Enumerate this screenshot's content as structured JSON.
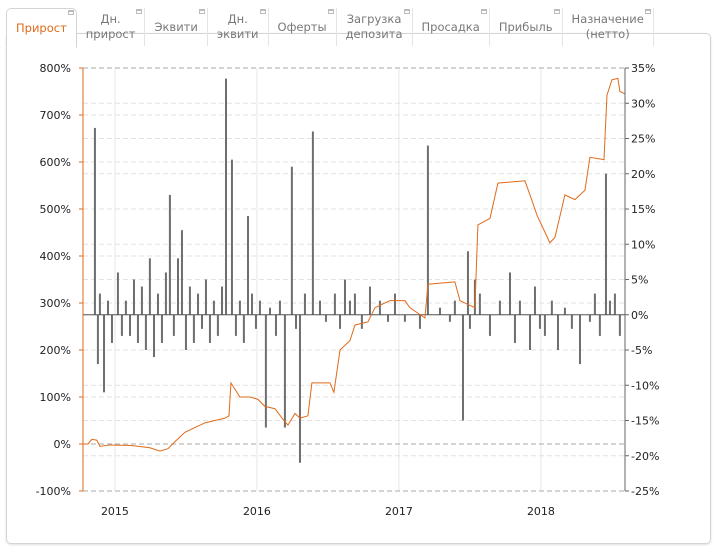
{
  "tabs": [
    {
      "label": "Прирост",
      "active": true
    },
    {
      "label": "Дн.\nприрост"
    },
    {
      "label": "Эквити"
    },
    {
      "label": "Дн.\nэквити"
    },
    {
      "label": "Оферты"
    },
    {
      "label": "Загрузка\nдепозита"
    },
    {
      "label": "Просадка"
    },
    {
      "label": "Прибыль"
    },
    {
      "label": "Назначение\n(нетто)"
    }
  ],
  "colors": {
    "line": "#e06a1a",
    "bars": "#6e6e6e",
    "axis_left": "#e06a1a",
    "axis_right": "#666666"
  },
  "chart_data": {
    "type": "line+bar",
    "x_range": [
      2014.775,
      2018.592
    ],
    "x_ticks": [
      {
        "value": 2015,
        "label": "2015"
      },
      {
        "value": 2016,
        "label": "2016"
      },
      {
        "value": 2017,
        "label": "2017"
      },
      {
        "value": 2018,
        "label": "2018"
      }
    ],
    "y_left": {
      "range": [
        -100,
        800
      ],
      "ticks": [
        "800%",
        "700%",
        "600%",
        "500%",
        "400%",
        "300%",
        "200%",
        "100%",
        "0%",
        "-100%"
      ],
      "tick_values": [
        800,
        700,
        600,
        500,
        400,
        300,
        200,
        100,
        0,
        -100
      ]
    },
    "y_right": {
      "range": [
        -25,
        35
      ],
      "ticks": [
        "35%",
        "30%",
        "25%",
        "20%",
        "15%",
        "10%",
        "5%",
        "0%",
        "-5%",
        "-10%",
        "-15%",
        "-20%",
        "-25%"
      ],
      "tick_values": [
        35,
        30,
        25,
        20,
        15,
        10,
        5,
        0,
        -5,
        -10,
        -15,
        -20,
        -25
      ]
    },
    "grid": true,
    "series": [
      {
        "name": "Прирост",
        "type": "line",
        "axis": "left",
        "points": [
          [
            2014.775,
            0
          ],
          [
            2014.81,
            0
          ],
          [
            2014.838,
            10
          ],
          [
            2014.873,
            8
          ],
          [
            2014.894,
            -5
          ],
          [
            2014.965,
            -2
          ],
          [
            2015.106,
            -3
          ],
          [
            2015.246,
            -8
          ],
          [
            2015.317,
            -15
          ],
          [
            2015.373,
            -10
          ],
          [
            2015.423,
            5
          ],
          [
            2015.493,
            25
          ],
          [
            2015.563,
            35
          ],
          [
            2015.634,
            45
          ],
          [
            2015.704,
            50
          ],
          [
            2015.775,
            55
          ],
          [
            2015.803,
            60
          ],
          [
            2015.817,
            130
          ],
          [
            2015.88,
            100
          ],
          [
            2015.951,
            100
          ],
          [
            2016.007,
            95
          ],
          [
            2016.056,
            80
          ],
          [
            2016.127,
            75
          ],
          [
            2016.19,
            50
          ],
          [
            2016.218,
            40
          ],
          [
            2016.268,
            65
          ],
          [
            2016.303,
            55
          ],
          [
            2016.359,
            60
          ],
          [
            2016.387,
            130
          ],
          [
            2016.514,
            130
          ],
          [
            2016.542,
            110
          ],
          [
            2016.585,
            200
          ],
          [
            2016.655,
            220
          ],
          [
            2016.69,
            253
          ],
          [
            2016.782,
            260
          ],
          [
            2016.831,
            290
          ],
          [
            2016.937,
            305
          ],
          [
            2017.042,
            305
          ],
          [
            2017.077,
            290
          ],
          [
            2017.183,
            268
          ],
          [
            2017.204,
            340
          ],
          [
            2017.394,
            345
          ],
          [
            2017.43,
            305
          ],
          [
            2017.535,
            290
          ],
          [
            2017.556,
            466
          ],
          [
            2017.641,
            480
          ],
          [
            2017.697,
            555
          ],
          [
            2017.887,
            560
          ],
          [
            2017.923,
            530
          ],
          [
            2017.972,
            487
          ],
          [
            2018.063,
            428
          ],
          [
            2018.099,
            440
          ],
          [
            2018.169,
            530
          ],
          [
            2018.239,
            520
          ],
          [
            2018.31,
            540
          ],
          [
            2018.345,
            610
          ],
          [
            2018.444,
            605
          ],
          [
            2018.465,
            742
          ],
          [
            2018.5,
            775
          ],
          [
            2018.542,
            778
          ],
          [
            2018.556,
            750
          ],
          [
            2018.592,
            745
          ]
        ]
      },
      {
        "name": "Дн. прирост",
        "type": "bar",
        "axis": "right",
        "points": [
          [
            2014.859,
            26.5
          ],
          [
            2014.88,
            -7
          ],
          [
            2014.894,
            3
          ],
          [
            2014.923,
            -11
          ],
          [
            2014.951,
            2
          ],
          [
            2014.979,
            -4
          ],
          [
            2015.021,
            6
          ],
          [
            2015.049,
            -3
          ],
          [
            2015.077,
            2
          ],
          [
            2015.106,
            -3
          ],
          [
            2015.134,
            5
          ],
          [
            2015.162,
            -4
          ],
          [
            2015.19,
            4
          ],
          [
            2015.218,
            -5
          ],
          [
            2015.246,
            8
          ],
          [
            2015.275,
            -6
          ],
          [
            2015.303,
            3
          ],
          [
            2015.331,
            -4
          ],
          [
            2015.359,
            6
          ],
          [
            2015.387,
            17
          ],
          [
            2015.415,
            -3
          ],
          [
            2015.444,
            8
          ],
          [
            2015.472,
            12
          ],
          [
            2015.5,
            -5
          ],
          [
            2015.528,
            4
          ],
          [
            2015.556,
            -4
          ],
          [
            2015.585,
            3
          ],
          [
            2015.613,
            -2
          ],
          [
            2015.641,
            5
          ],
          [
            2015.669,
            -4
          ],
          [
            2015.697,
            2
          ],
          [
            2015.725,
            -3
          ],
          [
            2015.754,
            4
          ],
          [
            2015.782,
            33.5
          ],
          [
            2015.824,
            22
          ],
          [
            2015.852,
            -3
          ],
          [
            2015.88,
            2
          ],
          [
            2015.908,
            -4
          ],
          [
            2015.937,
            14
          ],
          [
            2015.965,
            3
          ],
          [
            2015.993,
            -2
          ],
          [
            2016.021,
            2
          ],
          [
            2016.063,
            -16
          ],
          [
            2016.092,
            1
          ],
          [
            2016.134,
            -3
          ],
          [
            2016.162,
            2
          ],
          [
            2016.197,
            -16
          ],
          [
            2016.246,
            21
          ],
          [
            2016.275,
            -2
          ],
          [
            2016.303,
            -21
          ],
          [
            2016.338,
            3
          ],
          [
            2016.394,
            26
          ],
          [
            2016.444,
            2
          ],
          [
            2016.486,
            -1
          ],
          [
            2016.549,
            3
          ],
          [
            2016.585,
            -2
          ],
          [
            2016.62,
            5
          ],
          [
            2016.655,
            2
          ],
          [
            2016.69,
            3
          ],
          [
            2016.739,
            -2
          ],
          [
            2016.796,
            4
          ],
          [
            2016.866,
            2
          ],
          [
            2016.923,
            -1
          ],
          [
            2016.972,
            3
          ],
          [
            2017.042,
            -1
          ],
          [
            2017.148,
            -2
          ],
          [
            2017.204,
            24
          ],
          [
            2017.289,
            1
          ],
          [
            2017.359,
            -1
          ],
          [
            2017.394,
            2
          ],
          [
            2017.451,
            -15
          ],
          [
            2017.486,
            9
          ],
          [
            2017.5,
            -2
          ],
          [
            2017.535,
            5
          ],
          [
            2017.57,
            3
          ],
          [
            2017.641,
            -3
          ],
          [
            2017.711,
            2
          ],
          [
            2017.782,
            6
          ],
          [
            2017.817,
            -4
          ],
          [
            2017.852,
            2
          ],
          [
            2017.923,
            -5
          ],
          [
            2017.958,
            4
          ],
          [
            2017.993,
            -2
          ],
          [
            2018.028,
            -3
          ],
          [
            2018.077,
            2
          ],
          [
            2018.12,
            -5
          ],
          [
            2018.169,
            1
          ],
          [
            2018.218,
            -2
          ],
          [
            2018.275,
            -7
          ],
          [
            2018.345,
            -1
          ],
          [
            2018.38,
            3
          ],
          [
            2018.415,
            -3
          ],
          [
            2018.458,
            20
          ],
          [
            2018.486,
            2
          ],
          [
            2018.521,
            3
          ],
          [
            2018.556,
            -3
          ]
        ]
      }
    ]
  }
}
